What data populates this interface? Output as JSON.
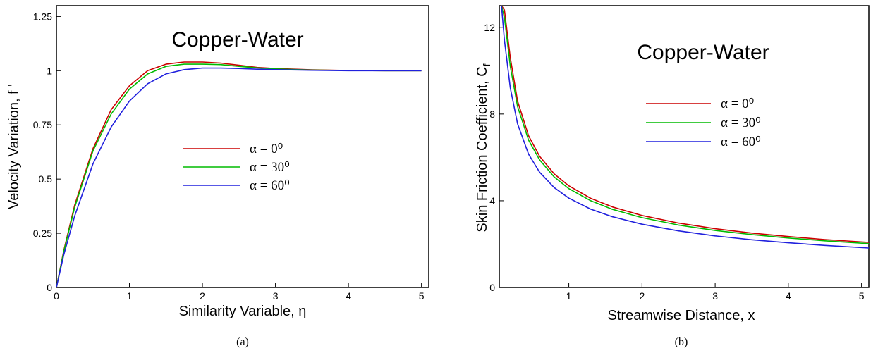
{
  "chart_data": [
    {
      "type": "line",
      "title": "Copper-Water",
      "xlabel": "Similarity Variable, η",
      "ylabel": "Velocity Variation, f '",
      "caption": "(a)",
      "xlim": [
        0,
        5.1
      ],
      "ylim": [
        0,
        1.3
      ],
      "xticks": [
        "0",
        "1",
        "2",
        "3",
        "4",
        "5"
      ],
      "xtick_values": [
        0,
        1,
        2,
        3,
        4,
        5
      ],
      "yticks": [
        "0",
        "0.25",
        "0.5",
        "0.75",
        "1",
        "1.25"
      ],
      "ytick_values": [
        0,
        0.25,
        0.5,
        0.75,
        1,
        1.25
      ],
      "grid": false,
      "legend_position": "center-right",
      "series": [
        {
          "name": "α = 0⁰",
          "color": "#cc0000",
          "x": [
            0,
            0.1,
            0.25,
            0.5,
            0.75,
            1.0,
            1.25,
            1.5,
            1.75,
            2.0,
            2.25,
            2.5,
            2.75,
            3.0,
            3.5,
            4.0,
            4.5,
            5.0
          ],
          "y": [
            0,
            0.17,
            0.38,
            0.64,
            0.82,
            0.93,
            1.0,
            1.03,
            1.04,
            1.04,
            1.035,
            1.025,
            1.015,
            1.01,
            1.004,
            1.001,
            1.0,
            1.0
          ]
        },
        {
          "name": "α = 30⁰",
          "color": "#00bb00",
          "x": [
            0,
            0.1,
            0.25,
            0.5,
            0.75,
            1.0,
            1.25,
            1.5,
            1.75,
            2.0,
            2.25,
            2.5,
            2.75,
            3.0,
            3.5,
            4.0,
            4.5,
            5.0
          ],
          "y": [
            0,
            0.165,
            0.37,
            0.63,
            0.8,
            0.915,
            0.985,
            1.02,
            1.03,
            1.03,
            1.028,
            1.02,
            1.013,
            1.008,
            1.003,
            1.001,
            1.0,
            1.0
          ]
        },
        {
          "name": "α = 60⁰",
          "color": "#2020dd",
          "x": [
            0,
            0.1,
            0.25,
            0.5,
            0.75,
            1.0,
            1.25,
            1.5,
            1.75,
            2.0,
            2.25,
            2.5,
            2.75,
            3.0,
            3.5,
            4.0,
            4.5,
            5.0
          ],
          "y": [
            0,
            0.15,
            0.33,
            0.57,
            0.74,
            0.86,
            0.94,
            0.985,
            1.005,
            1.012,
            1.012,
            1.01,
            1.007,
            1.005,
            1.002,
            1.0,
            1.0,
            1.0
          ]
        }
      ]
    },
    {
      "type": "line",
      "title": "Copper-Water",
      "xlabel": "Streamwise Distance, x",
      "ylabel": "Skin Friction Coefficient, C",
      "ylabel_sub": "f",
      "caption": "(b)",
      "xlim": [
        0.05,
        5.1
      ],
      "ylim": [
        0,
        13
      ],
      "xticks": [
        "1",
        "2",
        "3",
        "4",
        "5"
      ],
      "xtick_values": [
        1,
        2,
        3,
        4,
        5
      ],
      "yticks": [
        "0",
        "4",
        "8",
        "12"
      ],
      "ytick_values": [
        0,
        4,
        8,
        12
      ],
      "grid": false,
      "legend_position": "upper-center",
      "series": [
        {
          "name": "α = 0⁰",
          "color": "#cc0000",
          "x": [
            0.08,
            0.12,
            0.2,
            0.3,
            0.45,
            0.6,
            0.8,
            1.0,
            1.3,
            1.6,
            2.0,
            2.5,
            3.0,
            3.5,
            4.0,
            4.5,
            5.1
          ],
          "y": [
            13.5,
            12.8,
            10.6,
            8.6,
            7.0,
            6.05,
            5.24,
            4.69,
            4.11,
            3.71,
            3.32,
            2.97,
            2.71,
            2.51,
            2.35,
            2.21,
            2.08
          ]
        },
        {
          "name": "α = 30⁰",
          "color": "#00bb00",
          "x": [
            0.08,
            0.12,
            0.2,
            0.3,
            0.45,
            0.6,
            0.8,
            1.0,
            1.3,
            1.6,
            2.0,
            2.5,
            3.0,
            3.5,
            4.0,
            4.5,
            5.1
          ],
          "y": [
            13.3,
            12.45,
            10.2,
            8.35,
            6.8,
            5.89,
            5.1,
            4.56,
            4.0,
            3.6,
            3.22,
            2.88,
            2.63,
            2.44,
            2.28,
            2.15,
            2.02
          ]
        },
        {
          "name": "α = 60⁰",
          "color": "#2020dd",
          "x": [
            0.08,
            0.12,
            0.2,
            0.3,
            0.45,
            0.6,
            0.8,
            1.0,
            1.3,
            1.6,
            2.0,
            2.5,
            3.0,
            3.5,
            4.0,
            4.5,
            5.1
          ],
          "y": [
            13.0,
            11.4,
            9.2,
            7.55,
            6.15,
            5.32,
            4.61,
            4.12,
            3.61,
            3.26,
            2.92,
            2.61,
            2.38,
            2.2,
            2.06,
            1.94,
            1.82
          ]
        }
      ]
    }
  ]
}
